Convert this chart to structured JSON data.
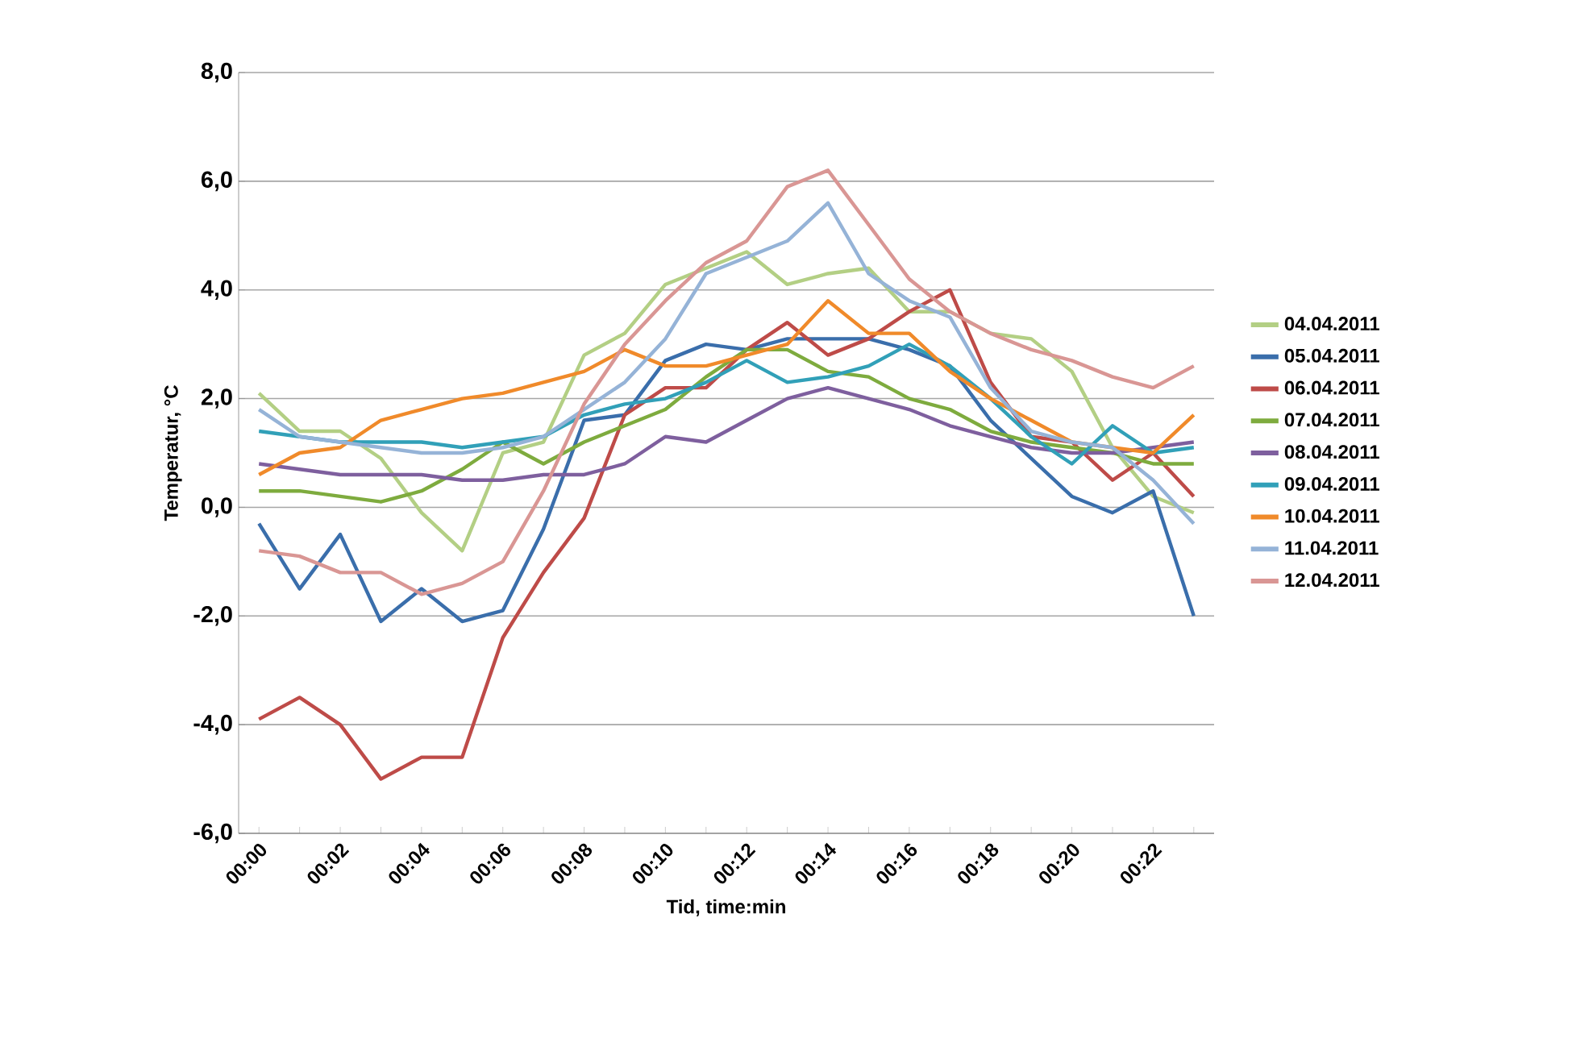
{
  "chart_data": {
    "type": "line",
    "xlabel": "Tid, time:min",
    "ylabel": "Temperatur, °C",
    "categories": [
      "00:00",
      null,
      "00:02",
      null,
      "00:04",
      null,
      "00:06",
      null,
      "00:08",
      null,
      "00:10",
      null,
      "00:12",
      null,
      "00:14",
      null,
      "00:16",
      null,
      "00:18",
      null,
      "00:20",
      null,
      "00:22",
      null
    ],
    "ylim": [
      -6,
      8
    ],
    "yticks": [
      {
        "value": -6,
        "label": "-6,0"
      },
      {
        "value": -4,
        "label": "-4,0"
      },
      {
        "value": -2,
        "label": "-2,0"
      },
      {
        "value": 0,
        "label": "0,0"
      },
      {
        "value": 2,
        "label": "2,0"
      },
      {
        "value": 4,
        "label": "4,0"
      },
      {
        "value": 6,
        "label": "6,0"
      },
      {
        "value": 8,
        "label": "8,0"
      }
    ],
    "grid": "y",
    "legend": "right",
    "marker": "none",
    "line_style": "solid",
    "series": [
      {
        "name": "04.04.2011",
        "color": "#b3cf84",
        "values": [
          2.1,
          1.4,
          1.4,
          0.9,
          -0.1,
          -0.8,
          1.0,
          1.2,
          2.8,
          3.2,
          4.1,
          4.4,
          4.7,
          4.1,
          4.3,
          4.4,
          3.6,
          3.6,
          3.2,
          3.1,
          2.5,
          1.1,
          0.2,
          -0.1
        ]
      },
      {
        "name": "05.04.2011",
        "color": "#3a6eab",
        "values": [
          -0.3,
          -1.5,
          -0.5,
          -2.1,
          -1.5,
          -2.1,
          -1.9,
          -0.4,
          1.6,
          1.7,
          2.7,
          3.0,
          2.9,
          3.1,
          3.1,
          3.1,
          2.9,
          2.6,
          1.6,
          0.9,
          0.2,
          -0.1,
          0.3,
          -2.0
        ]
      },
      {
        "name": "06.04.2011",
        "color": "#be4b48",
        "values": [
          -3.9,
          -3.5,
          -4.0,
          -5.0,
          -4.6,
          -4.6,
          -2.4,
          -1.2,
          -0.2,
          1.7,
          2.2,
          2.2,
          2.9,
          3.4,
          2.8,
          3.1,
          3.6,
          4.0,
          2.3,
          1.3,
          1.2,
          0.5,
          1.0,
          0.2
        ]
      },
      {
        "name": "07.04.2011",
        "color": "#7eab3e",
        "values": [
          0.3,
          0.3,
          0.2,
          0.1,
          0.3,
          0.7,
          1.2,
          0.8,
          1.2,
          1.5,
          1.8,
          2.4,
          2.9,
          2.9,
          2.5,
          2.4,
          2.0,
          1.8,
          1.4,
          1.2,
          1.1,
          1.0,
          0.8,
          0.8
        ]
      },
      {
        "name": "08.04.2011",
        "color": "#7e5f9e",
        "values": [
          0.8,
          0.7,
          0.6,
          0.6,
          0.6,
          0.5,
          0.5,
          0.6,
          0.6,
          0.8,
          1.3,
          1.2,
          1.6,
          2.0,
          2.2,
          2.0,
          1.8,
          1.5,
          1.3,
          1.1,
          1.0,
          1.0,
          1.1,
          1.2
        ]
      },
      {
        "name": "09.04.2011",
        "color": "#31a0b8",
        "values": [
          1.4,
          1.3,
          1.2,
          1.2,
          1.2,
          1.1,
          1.2,
          1.3,
          1.7,
          1.9,
          2.0,
          2.3,
          2.7,
          2.3,
          2.4,
          2.6,
          3.0,
          2.6,
          2.0,
          1.3,
          0.8,
          1.5,
          1.0,
          1.1
        ]
      },
      {
        "name": "10.04.2011",
        "color": "#f08a2a",
        "values": [
          0.6,
          1.0,
          1.1,
          1.6,
          1.8,
          2.0,
          2.1,
          2.3,
          2.5,
          2.9,
          2.6,
          2.6,
          2.8,
          3.0,
          3.8,
          3.2,
          3.2,
          2.5,
          2.0,
          1.6,
          1.2,
          1.1,
          1.0,
          1.7
        ]
      },
      {
        "name": "11.04.2011",
        "color": "#95b3d7",
        "values": [
          1.8,
          1.3,
          1.2,
          1.1,
          1.0,
          1.0,
          1.1,
          1.3,
          1.8,
          2.3,
          3.1,
          4.3,
          4.6,
          4.9,
          5.6,
          4.3,
          3.8,
          3.5,
          2.2,
          1.4,
          1.2,
          1.1,
          0.5,
          -0.3
        ]
      },
      {
        "name": "12.04.2011",
        "color": "#d99694",
        "values": [
          -0.8,
          -0.9,
          -1.2,
          -1.2,
          -1.6,
          -1.4,
          -1.0,
          0.3,
          1.9,
          3.0,
          3.8,
          4.5,
          4.9,
          5.9,
          6.2,
          5.2,
          4.2,
          3.6,
          3.2,
          2.9,
          2.7,
          2.4,
          2.2,
          2.6
        ]
      }
    ]
  }
}
